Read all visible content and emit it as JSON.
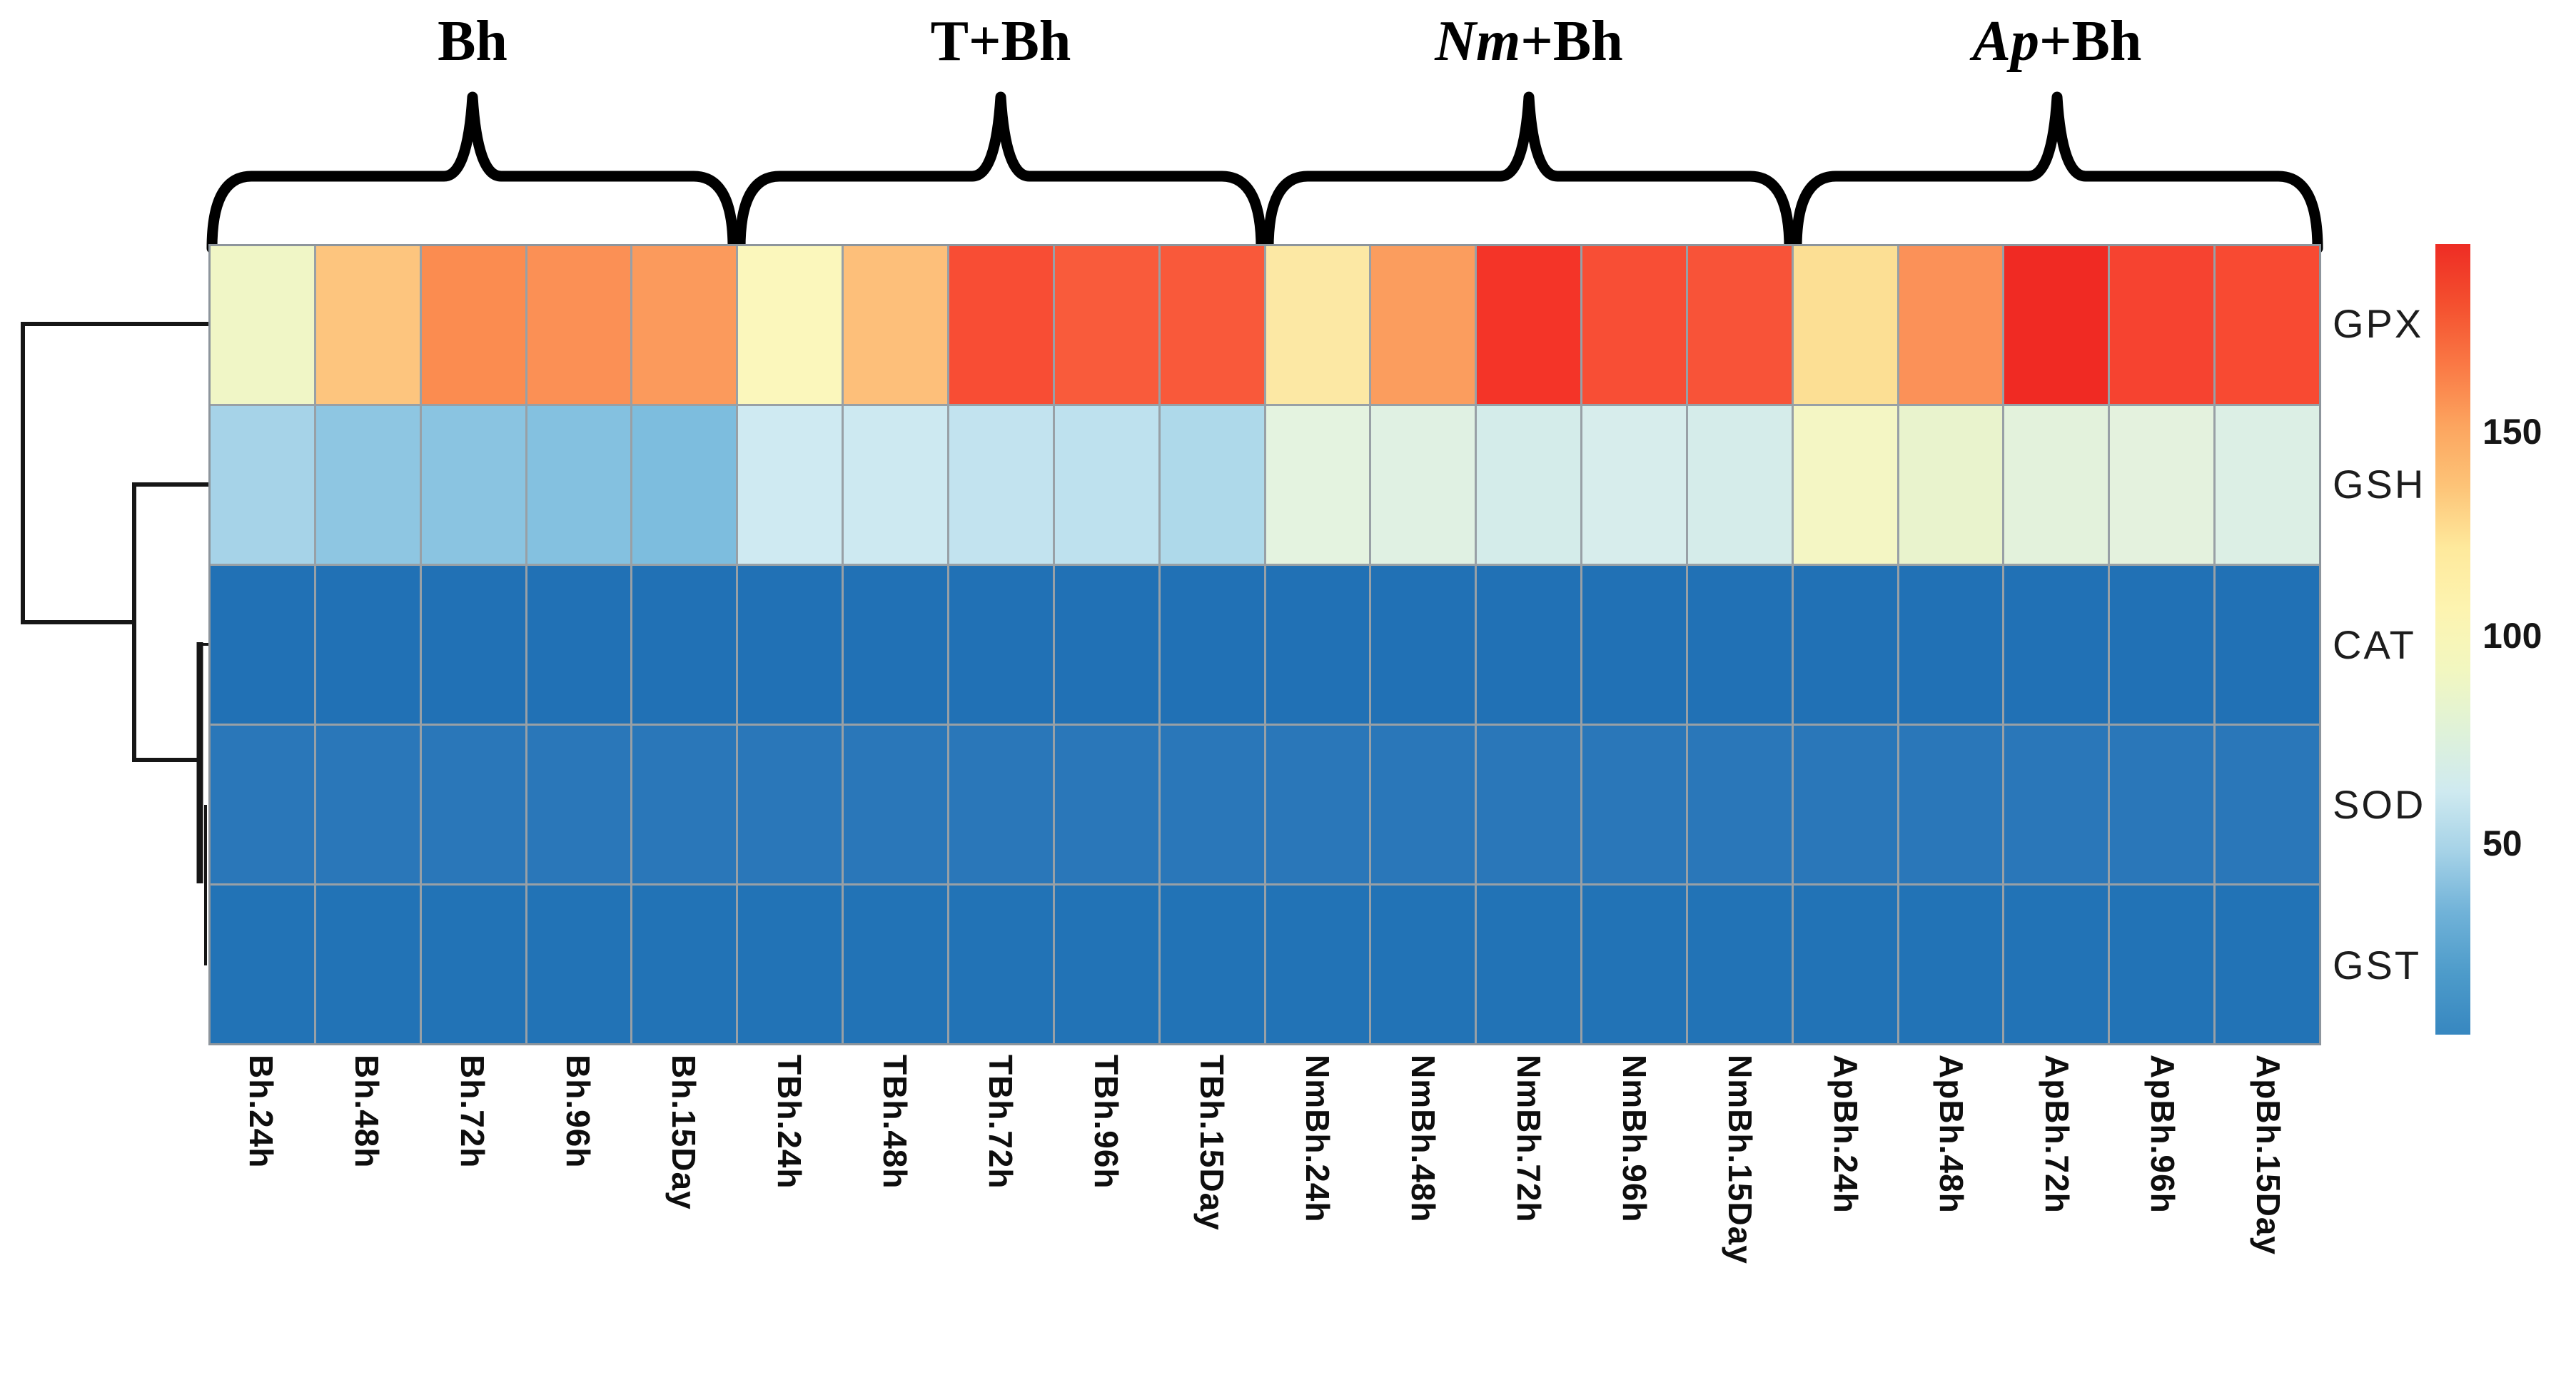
{
  "figure": {
    "description": "Clustered heatmap of antioxidant enzyme activity across treatments and exposure times",
    "background_color": "#ffffff",
    "accent_grid_color": "#98a0a6"
  },
  "chart_data": {
    "type": "heatmap",
    "rows": [
      "GPX",
      "GSH",
      "CAT",
      "SOD",
      "GST"
    ],
    "columns": [
      "Bh.24h",
      "Bh.48h",
      "Bh.72h",
      "Bh.96h",
      "Bh.15Day",
      "TBh.24h",
      "TBh.48h",
      "TBh.72h",
      "TBh.96h",
      "TBh.15Day",
      "NmBh.24h",
      "NmBh.48h",
      "NmBh.72h",
      "NmBh.96h",
      "NmBh.15Day",
      "ApBh.24h",
      "ApBh.48h",
      "ApBh.72h",
      "ApBh.96h",
      "ApBh.15Day"
    ],
    "column_groups": [
      {
        "label": "Bh",
        "italic_part": "",
        "plain_part": "Bh",
        "start": 0,
        "span": 5
      },
      {
        "label": "T+Bh",
        "italic_part": "",
        "plain_part": "T+Bh",
        "start": 5,
        "span": 5
      },
      {
        "label": "Nm+Bh",
        "italic_part": "Nm",
        "plain_part": "+Bh",
        "start": 10,
        "span": 5
      },
      {
        "label": "Ap+Bh",
        "italic_part": "Ap",
        "plain_part": "+Bh",
        "start": 15,
        "span": 5
      }
    ],
    "series": [
      {
        "name": "GPX",
        "values": [
          97,
          133,
          155,
          154,
          151,
          100,
          135,
          172,
          169,
          169,
          112,
          149,
          181,
          172,
          171,
          117,
          153,
          186,
          176,
          173
        ]
      },
      {
        "name": "GSH",
        "values": [
          62,
          56,
          55,
          53,
          51,
          73,
          72,
          69,
          68,
          64,
          82,
          81,
          76,
          77,
          76,
          97,
          87,
          83,
          83,
          79
        ]
      },
      {
        "name": "CAT",
        "values": [
          15,
          15,
          15,
          15,
          15,
          15,
          15,
          15,
          15,
          15,
          15,
          15,
          15,
          15,
          15,
          15,
          15,
          15,
          15,
          15
        ]
      },
      {
        "name": "SOD",
        "values": [
          16,
          16,
          16,
          16,
          16,
          16,
          16,
          16,
          16,
          16,
          16,
          16,
          16,
          16,
          16,
          16,
          16,
          16,
          16,
          16
        ]
      },
      {
        "name": "GST",
        "values": [
          15,
          15,
          15,
          15,
          15,
          15,
          15,
          15,
          15,
          15,
          15,
          15,
          15,
          15,
          15,
          15,
          15,
          15,
          15,
          15
        ]
      }
    ],
    "cell_colors": [
      [
        "#f0f6c6",
        "#fdc57e",
        "#fb8c50",
        "#fb9055",
        "#fb9a5c",
        "#fbf7bc",
        "#fdbf7a",
        "#f84d34",
        "#f95b3b",
        "#f9593a",
        "#fce8a4",
        "#fb9d5e",
        "#f43428",
        "#f84e35",
        "#f85338",
        "#fcdf94",
        "#fb9158",
        "#f02a23",
        "#f64330",
        "#f84a32"
      ],
      [
        "#a6d3e8",
        "#8ec6e2",
        "#8ac4e1",
        "#84c1e0",
        "#7dbdde",
        "#cfeaf2",
        "#cde9f1",
        "#c2e3ef",
        "#bee1ee",
        "#aed9ea",
        "#e4f3e0",
        "#e0f1e3",
        "#d4ecea",
        "#d7edec",
        "#d5ecea",
        "#f4f6c4",
        "#e9f3cd",
        "#e3f2dc",
        "#e4f2de",
        "#dcefe5"
      ],
      [
        "#2171b5",
        "#2171b5",
        "#2171b5",
        "#2171b5",
        "#2171b5",
        "#2171b5",
        "#2171b5",
        "#2171b5",
        "#2171b5",
        "#2171b5",
        "#2171b5",
        "#2171b5",
        "#2171b5",
        "#2171b5",
        "#2171b5",
        "#2171b5",
        "#2171b5",
        "#2171b5",
        "#2171b5",
        "#2171b5"
      ],
      [
        "#2a77b9",
        "#2a77b9",
        "#2a77b9",
        "#2a77b9",
        "#2a77b9",
        "#2a77b9",
        "#2a77b9",
        "#2a77b9",
        "#2a77b9",
        "#2a77b9",
        "#2a77b9",
        "#2a77b9",
        "#2a77b9",
        "#2a77b9",
        "#2a77b9",
        "#2a77b9",
        "#2a77b9",
        "#2a77b9",
        "#2a77b9",
        "#2a77b9"
      ],
      [
        "#2273b6",
        "#2273b6",
        "#2273b6",
        "#2273b6",
        "#2273b6",
        "#2273b6",
        "#2273b6",
        "#2273b6",
        "#2273b6",
        "#2273b6",
        "#2273b6",
        "#2273b6",
        "#2273b6",
        "#2273b6",
        "#2273b6",
        "#2273b6",
        "#2273b6",
        "#2273b6",
        "#2273b6",
        "#2273b6"
      ]
    ],
    "colorbar": {
      "tick_labels": [
        "150",
        "100",
        "50"
      ],
      "tick_values": [
        150,
        100,
        50
      ],
      "range_low": 4,
      "range_high": 196,
      "gradient_top_to_bottom": [
        "#ee2c24",
        "#f4502f",
        "#fa7945",
        "#fca55f",
        "#fdc478",
        "#fee99c",
        "#fdf4b0",
        "#f2f7c0",
        "#dff2d8",
        "#cfeaf0",
        "#a5d2e7",
        "#70b2d8",
        "#4d9bca",
        "#3787c0"
      ]
    },
    "row_dendrogram": {
      "orientation": "left",
      "structure": "(GPX,(GSH,(CAT,(SOD,GST))))"
    },
    "legend_position": "right",
    "grid": true
  }
}
